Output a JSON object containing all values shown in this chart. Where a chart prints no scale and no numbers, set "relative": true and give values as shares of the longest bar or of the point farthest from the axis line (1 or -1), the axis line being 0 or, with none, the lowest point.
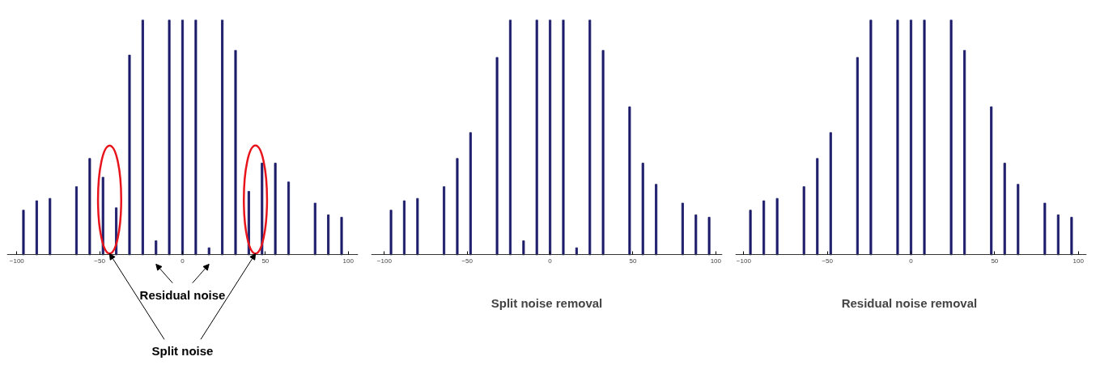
{
  "chart_data": [
    {
      "type": "bar",
      "relative": true,
      "color": "#1c1c6b",
      "xlim": [
        -106,
        106
      ],
      "xticks": [
        -100,
        -50,
        0,
        50,
        100
      ],
      "x": [
        -96,
        -88,
        -80,
        -64,
        -56,
        -48,
        -40,
        -32,
        -24,
        -16,
        -8,
        0,
        8,
        16,
        24,
        32,
        40,
        48,
        56,
        64,
        80,
        88,
        96
      ],
      "values": [
        0.19,
        0.23,
        0.24,
        0.29,
        0.41,
        0.33,
        0.2,
        0.85,
        1,
        0.06,
        1,
        1,
        1,
        0.03,
        1,
        0.87,
        0.27,
        0.39,
        0.39,
        0.31,
        0.22,
        0.17,
        0.16
      ],
      "annotations": [
        "Residual noise",
        "Split noise"
      ]
    },
    {
      "type": "bar",
      "relative": true,
      "color": "#1c1c6b",
      "xlim": [
        -108,
        104
      ],
      "xticks": [
        -100,
        -50,
        0,
        50,
        100
      ],
      "x": [
        -96,
        -88,
        -80,
        -64,
        -56,
        -48,
        -32,
        -24,
        -16,
        -8,
        0,
        8,
        16,
        24,
        32,
        48,
        56,
        64,
        80,
        88,
        96
      ],
      "values": [
        0.19,
        0.23,
        0.24,
        0.29,
        0.41,
        0.52,
        0.84,
        1,
        0.06,
        1,
        1,
        1,
        0.03,
        1,
        0.87,
        0.63,
        0.39,
        0.3,
        0.22,
        0.17,
        0.16
      ],
      "xlabel": "Split noise removal"
    },
    {
      "type": "bar",
      "relative": true,
      "color": "#1c1c6b",
      "xlim": [
        -105,
        105
      ],
      "xticks": [
        -100,
        -50,
        0,
        50,
        100
      ],
      "x": [
        -96,
        -88,
        -80,
        -64,
        -56,
        -48,
        -32,
        -24,
        -8,
        0,
        8,
        24,
        32,
        48,
        56,
        64,
        80,
        88,
        96
      ],
      "values": [
        0.19,
        0.23,
        0.24,
        0.29,
        0.41,
        0.52,
        0.84,
        1,
        1,
        1,
        1,
        1,
        0.87,
        0.63,
        0.39,
        0.3,
        0.22,
        0.17,
        0.16
      ],
      "xlabel": "Residual  noise removal"
    }
  ]
}
